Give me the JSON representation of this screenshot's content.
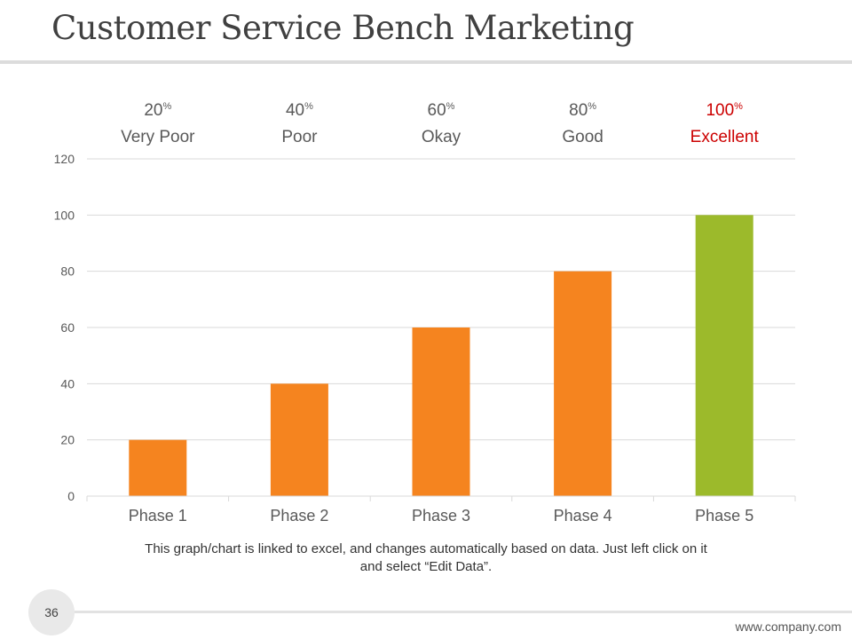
{
  "slide": {
    "title": "Customer Service Bench Marketing",
    "note": "This graph/chart is linked to excel, and changes automatically based on data. Just left click on it and select “Edit Data”.",
    "page_number": "36",
    "footer_url": "www.company.com"
  },
  "colors": {
    "bar": "#f5841f",
    "bar_highlight": "#9cba2b",
    "rating_default": "#595959",
    "rating_highlight": "#cc0000",
    "grid": "#d9d9d9",
    "axis_text": "#595959"
  },
  "chart_data": {
    "type": "bar",
    "title": "",
    "xlabel": "",
    "ylabel": "",
    "categories": [
      "Phase 1",
      "Phase 2",
      "Phase 3",
      "Phase 4",
      "Phase 5"
    ],
    "values": [
      20,
      40,
      60,
      80,
      100
    ],
    "ylim": [
      0,
      120
    ],
    "yticks": [
      0,
      20,
      40,
      60,
      80,
      100,
      120
    ],
    "grid": true,
    "legend": "none",
    "highlight_index": 4,
    "ratings": [
      {
        "percent": "20",
        "suffix": "%",
        "label": "Very Poor"
      },
      {
        "percent": "40",
        "suffix": "%",
        "label": "Poor"
      },
      {
        "percent": "60",
        "suffix": "%",
        "label": "Okay"
      },
      {
        "percent": "80",
        "suffix": "%",
        "label": "Good"
      },
      {
        "percent": "100",
        "suffix": "%",
        "label": "Excellent"
      }
    ]
  }
}
